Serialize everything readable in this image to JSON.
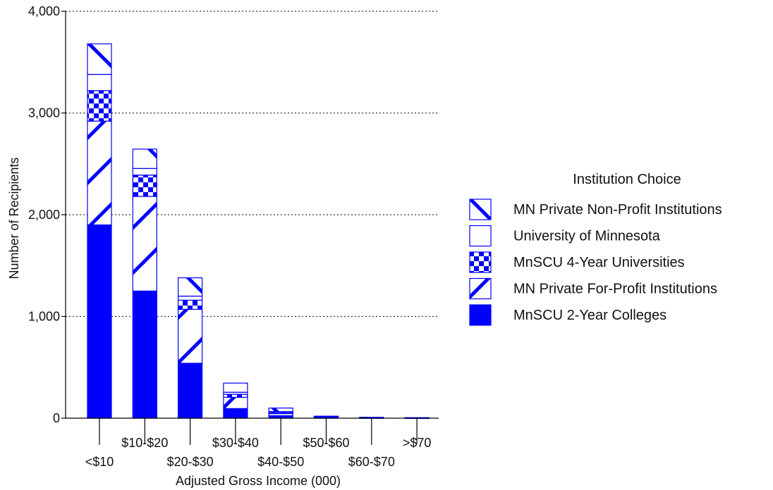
{
  "chart_data": {
    "type": "bar",
    "stacked": true,
    "xlabel": "Adjusted Gross Income (000)",
    "ylabel": "Number of Recipients",
    "ylim": [
      0,
      4000
    ],
    "yticks": [
      0,
      1000,
      2000,
      3000,
      4000
    ],
    "ytick_labels": [
      "0",
      "1,000",
      "2,000",
      "3,000",
      "4,000"
    ],
    "grid": "horizontal dotted",
    "legend_title": "Institution Choice",
    "legend_position": "right",
    "categories": [
      "<$10",
      "$10-$20",
      "$20-$30",
      "$30-$40",
      "$40-$50",
      "$50-$60",
      "$60-$70",
      ">$70"
    ],
    "series": [
      {
        "name": "MnSCU 2-Year Colleges",
        "pattern": "solid",
        "color": "#0000ff",
        "values": [
          1900,
          1250,
          540,
          95,
          25,
          5,
          2,
          1
        ]
      },
      {
        "name": "MN Private For-Profit Institutions",
        "pattern": "diagonal",
        "color": "#0000ff",
        "values": [
          1020,
          930,
          530,
          110,
          20,
          4,
          2,
          1
        ]
      },
      {
        "name": "MnSCU 4-Year Universities",
        "pattern": "checker",
        "color": "#0000ff",
        "values": [
          300,
          210,
          90,
          30,
          10,
          3,
          1,
          1
        ]
      },
      {
        "name": "University of Minnesota",
        "pattern": "empty",
        "color": "#0000ff",
        "values": [
          160,
          65,
          40,
          20,
          10,
          2,
          1,
          1
        ]
      },
      {
        "name": "MN Private Non-Profit Institutions",
        "pattern": "back-diagonal",
        "color": "#0000ff",
        "values": [
          300,
          190,
          180,
          90,
          35,
          6,
          3,
          1
        ]
      }
    ]
  }
}
